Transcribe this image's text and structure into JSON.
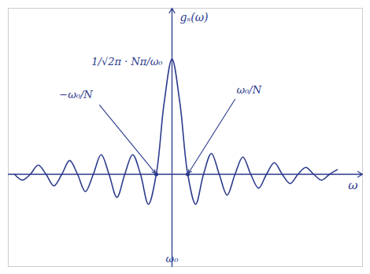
{
  "chart_data": {
    "type": "line",
    "xlabel": "ω",
    "ylabel": "gₛ(ω)",
    "x": [
      -10,
      -9.5,
      -9,
      -8.5,
      -8,
      -7.5,
      -7,
      -6.5,
      -6,
      -5.5,
      -5,
      -4.5,
      -4,
      -3.5,
      -3,
      -2.5,
      -2,
      -1.5,
      -1,
      -0.5,
      0,
      0.5,
      1,
      1.5,
      2,
      2.5,
      3,
      3.5,
      4,
      4.5,
      5,
      5.5,
      6,
      6.5,
      7,
      7.5,
      8,
      8.5,
      9,
      9.5,
      10,
      10.5
    ],
    "values": [
      0,
      -0.05,
      0,
      0.08,
      0,
      -0.1,
      0,
      0.12,
      0,
      -0.15,
      0,
      0.17,
      0,
      -0.2,
      0,
      0.17,
      0,
      -0.26,
      0,
      0.62,
      1,
      0.62,
      0,
      -0.26,
      0,
      0.18,
      0,
      -0.18,
      0,
      0.15,
      0,
      -0.12,
      0,
      0.1,
      0,
      -0.08,
      0,
      0.06,
      0,
      -0.05,
      0,
      0.04
    ],
    "color": "#2b3a8c",
    "xlim": [
      -10.4,
      12.1
    ],
    "ylim": [
      -0.8,
      1.44
    ],
    "xticks": [
      0
    ],
    "yticks": [
      0
    ],
    "tick_labels": false,
    "grid": false,
    "annotations": [
      {
        "text": "1/√2π · Nπ/ω₀",
        "x": 0,
        "y": 1
      },
      {
        "text": "−ω₀/N",
        "x": -1,
        "y": 0
      },
      {
        "text": "ω₀/N",
        "x": 1,
        "y": 0
      },
      {
        "text": "ω₀",
        "x": 0,
        "y": -0.8
      }
    ]
  }
}
